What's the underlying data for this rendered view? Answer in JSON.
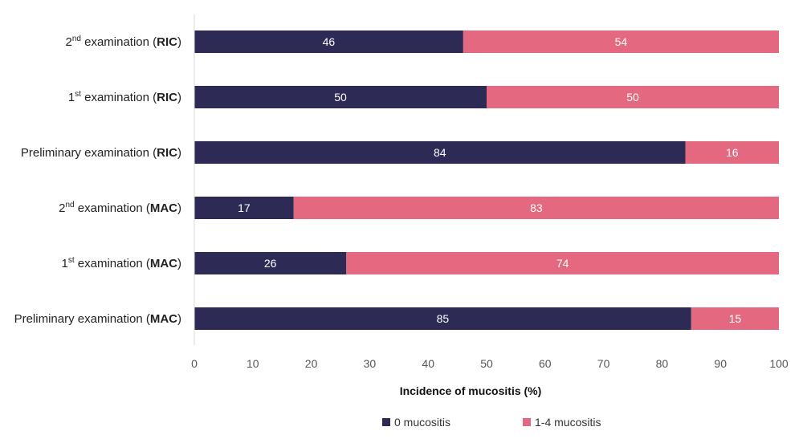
{
  "chart_data": {
    "type": "bar",
    "orientation": "horizontal",
    "stacked": true,
    "xlabel": "Incidence of mucositis (%)",
    "xlim": [
      0,
      100
    ],
    "xticks": [
      0,
      10,
      20,
      30,
      40,
      50,
      60,
      70,
      80,
      90,
      100
    ],
    "grid": false,
    "legend_position": "bottom",
    "categories": [
      {
        "pre": "2",
        "sup": "nd",
        "main": " examination (",
        "bold": "RIC",
        "post": ")"
      },
      {
        "pre": "1",
        "sup": "st",
        "main": " examination (",
        "bold": "RIC",
        "post": ")"
      },
      {
        "pre": "",
        "sup": "",
        "main": "Preliminary examination (",
        "bold": "RIC",
        "post": ")"
      },
      {
        "pre": "2",
        "sup": "nd",
        "main": " examination (",
        "bold": "MAC",
        "post": ")"
      },
      {
        "pre": "1",
        "sup": "st",
        "main": " examination (",
        "bold": "MAC",
        "post": ")"
      },
      {
        "pre": "",
        "sup": "",
        "main": "Preliminary examination (",
        "bold": "MAC",
        "post": ")"
      }
    ],
    "series": [
      {
        "name": "0 mucositis",
        "color": "#2d2a55",
        "values": [
          46,
          50,
          84,
          17,
          26,
          85
        ]
      },
      {
        "name": "1-4 mucositis",
        "color": "#e4687f",
        "values": [
          54,
          50,
          16,
          83,
          74,
          15
        ]
      }
    ]
  }
}
